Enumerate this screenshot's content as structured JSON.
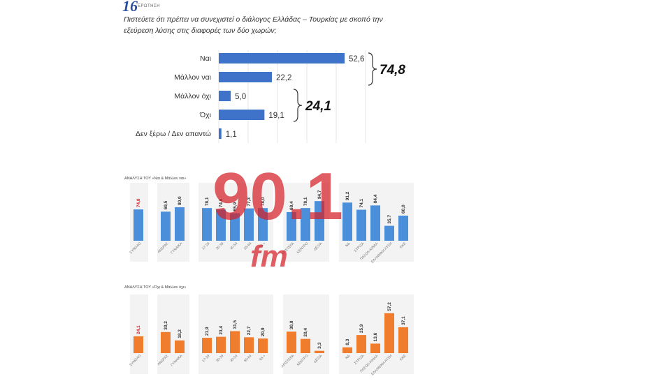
{
  "header": {
    "question_number": "16",
    "question_label": "ΕΡΩΤΗΣΗ",
    "question_text": "Πιστεύετε ότι πρέπει να συνεχιστεί ο διάλογος Ελλάδας – Τουρκίας με σκοπό την εξεύρεση λύσης στις διαφορές των δύο χωρών;"
  },
  "watermark": {
    "text": "90.1",
    "sub": "fm"
  },
  "colors": {
    "blue": "#3f73c9",
    "blue_light": "#4b8fdb",
    "orange": "#f07d2e",
    "red": "#d42027"
  },
  "chart_data": [
    {
      "type": "bar",
      "orientation": "horizontal",
      "categories": [
        "Ναι",
        "Μάλλον ναι",
        "Μάλλον όχι",
        "Όχι",
        "Δεν ξέρω / Δεν απαντώ"
      ],
      "values": [
        52.6,
        22.2,
        5.0,
        19.1,
        1.1
      ],
      "value_labels": [
        "52,6",
        "22,2",
        "5,0",
        "19,1",
        "1,1"
      ],
      "groups": [
        {
          "label": "74,8",
          "categories": [
            "Ναι",
            "Μάλλον ναι"
          ]
        },
        {
          "label": "24,1",
          "categories": [
            "Μάλλον όχι",
            "Όχι"
          ]
        }
      ]
    },
    {
      "type": "bar",
      "title": "ΑΝΑΛΥΣΗ ΤΟΥ «Ναι & Μάλλον ναι»",
      "categories": [
        "ΣΥΝΟΛΟ",
        "ΑΝΔΡΑΣ",
        "ΓΥΝΑΙΚΑ",
        "17-29",
        "30-39",
        "40-54",
        "55-64",
        "65 +",
        "ΑΡΙΣΤΕΡΑ",
        "ΚΕΝΤΡΟ",
        "ΔΕΞΙΑ",
        "ΝΔ",
        "ΣΥΡΙΖΑ",
        "ΠΑΣΟΚ-ΚΙΝΑΛ",
        "ΕΛΛΗΝΙΚΗ ΛΥΣΗ",
        "ΚΚΕ"
      ],
      "values": [
        74.8,
        69.5,
        80.0,
        78.1,
        74.6,
        65.9,
        77.3,
        78.0,
        68.4,
        78.1,
        94.7,
        91.2,
        74.1,
        84.4,
        35.7,
        60.0
      ],
      "value_labels": [
        "74,8",
        "69,5",
        "80,0",
        "78,1",
        "74,6",
        "65,9",
        "77,3",
        "78,0",
        "68,4",
        "78,1",
        "94,7",
        "91,2",
        "74,1",
        "84,4",
        "35,7",
        "60,0"
      ]
    },
    {
      "type": "bar",
      "title": "ΑΝΑΛΥΣΗ ΤΟΥ «Όχι & Μάλλον όχι»",
      "categories": [
        "ΣΥΝΟΛΟ",
        "ΑΝΔΡΑΣ",
        "ΓΥΝΑΙΚΑ",
        "17-29",
        "30-39",
        "40-54",
        "55-64",
        "65 +",
        "ΑΡΙΣΤΕΡΑ",
        "ΚΕΝΤΡΟ",
        "ΔΕΞΙΑ",
        "ΝΔ",
        "ΣΥΡΙΖΑ",
        "ΠΑΣΟΚ-ΚΙΝΑΛ",
        "ΕΛΛΗΝΙΚΗ ΛΥΣΗ",
        "ΚΚΕ"
      ],
      "values": [
        24.1,
        30.2,
        18.2,
        21.9,
        23.4,
        31.5,
        22.7,
        20.9,
        30.8,
        20.4,
        3.3,
        8.3,
        25.9,
        13.6,
        57.2,
        37.1
      ],
      "value_labels": [
        "24,1",
        "30,2",
        "18,2",
        "21,9",
        "23,4",
        "31,5",
        "22,7",
        "20,9",
        "30,8",
        "20,4",
        "3,3",
        "8,3",
        "25,9",
        "13,6",
        "57,2",
        "37,1"
      ]
    }
  ]
}
